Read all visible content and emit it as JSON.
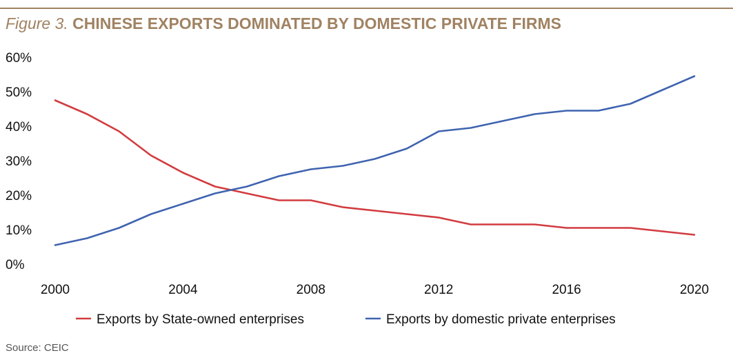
{
  "title": {
    "prefix": "Figure 3.",
    "text": "CHINESE EXPORTS DOMINATED BY DOMESTIC PRIVATE FIRMS"
  },
  "source": "Source: CEIC",
  "chart_data": {
    "type": "line",
    "x": [
      2000,
      2001,
      2002,
      2003,
      2004,
      2005,
      2006,
      2007,
      2008,
      2009,
      2010,
      2011,
      2012,
      2013,
      2014,
      2015,
      2016,
      2017,
      2018,
      2019,
      2020
    ],
    "series": [
      {
        "name": "Exports by State-owned enterprises",
        "color": "#d23b3f",
        "values": [
          47.5,
          43.5,
          38.5,
          31.5,
          26.5,
          22.5,
          20.5,
          18.5,
          18.5,
          16.5,
          15.5,
          14.5,
          13.5,
          11.5,
          11.5,
          11.5,
          10.5,
          10.5,
          10.5,
          9.5,
          8.5
        ]
      },
      {
        "name": "Exports by domestic private enterprises",
        "color": "#3f63b0",
        "values": [
          5.5,
          7.5,
          10.5,
          14.5,
          17.5,
          20.5,
          22.5,
          25.5,
          27.5,
          28.5,
          30.5,
          33.5,
          38.5,
          39.5,
          41.5,
          43.5,
          44.5,
          44.5,
          46.5,
          50.5,
          54.5
        ]
      }
    ],
    "xticks": [
      "2000",
      "2004",
      "2008",
      "2012",
      "2016",
      "2020"
    ],
    "yticks": [
      "0%",
      "10%",
      "20%",
      "30%",
      "40%",
      "50%",
      "60%"
    ],
    "xlim": [
      2000,
      2020
    ],
    "ylim": [
      0,
      60
    ],
    "grid": false,
    "legend": "bottom"
  }
}
